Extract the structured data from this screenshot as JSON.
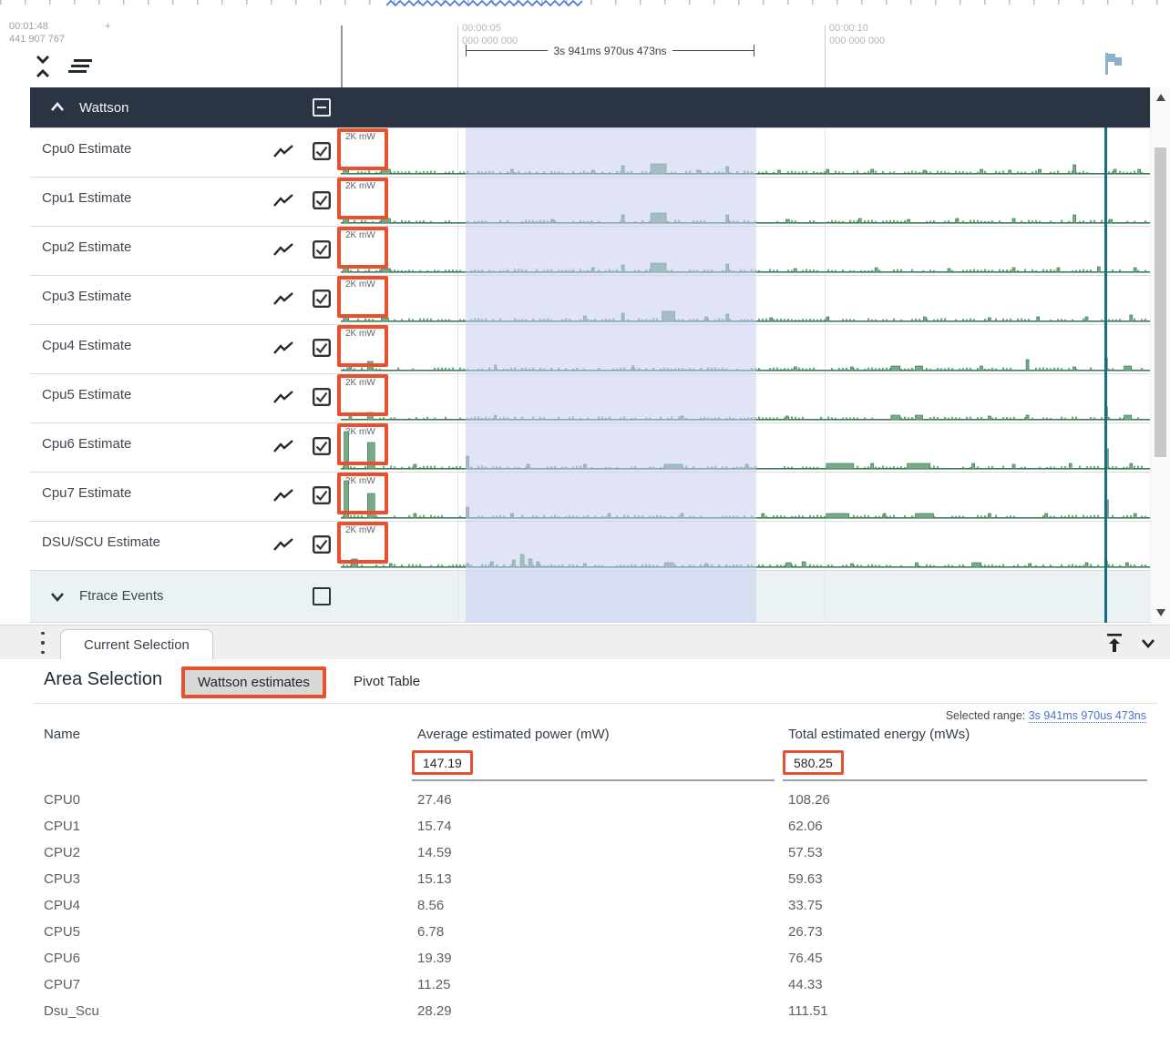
{
  "ruler": {
    "left_time": "00:01:48",
    "left_plus": "+",
    "left_time2": "441 907 767",
    "markers": [
      {
        "time": "00:00:05",
        "sub": "000 000 000"
      },
      {
        "time": "00:00:10",
        "sub": "000 000 000"
      }
    ],
    "range_label": "3s 941ms 970us 473ns"
  },
  "track_area": {
    "group_name": "Wattson",
    "unit_label": "2K mW",
    "ftrace_group_name": "Ftrace Events",
    "tracks": [
      {
        "name": "Cpu0 Estimate",
        "spikes": [
          [
            0.003,
            5,
            6
          ],
          [
            0.05,
            4,
            10
          ],
          [
            0.21,
            4,
            3
          ],
          [
            0.31,
            3,
            3
          ],
          [
            0.347,
            8,
            3
          ],
          [
            0.383,
            10,
            17
          ],
          [
            0.44,
            3,
            4
          ],
          [
            0.476,
            7,
            3
          ],
          [
            0.54,
            3,
            3
          ],
          [
            0.6,
            4,
            3
          ],
          [
            0.655,
            4,
            3
          ],
          [
            0.72,
            3,
            3
          ],
          [
            0.79,
            4,
            3
          ],
          [
            0.825,
            3,
            3
          ],
          [
            0.862,
            4,
            3
          ],
          [
            0.905,
            9,
            3
          ],
          [
            0.955,
            4,
            3
          ],
          [
            0.985,
            4,
            3
          ]
        ]
      },
      {
        "name": "Cpu1 Estimate",
        "spikes": [
          [
            0.003,
            4,
            6
          ],
          [
            0.05,
            4,
            10
          ],
          [
            0.26,
            3,
            3
          ],
          [
            0.347,
            8,
            3
          ],
          [
            0.383,
            10,
            17
          ],
          [
            0.476,
            8,
            3
          ],
          [
            0.55,
            3,
            4
          ],
          [
            0.64,
            4,
            3
          ],
          [
            0.7,
            3,
            3
          ],
          [
            0.76,
            4,
            3
          ],
          [
            0.83,
            4,
            3
          ],
          [
            0.905,
            8,
            3
          ],
          [
            0.95,
            3,
            3
          ]
        ]
      },
      {
        "name": "Cpu2 Estimate",
        "spikes": [
          [
            0.003,
            4,
            6
          ],
          [
            0.05,
            3,
            10
          ],
          [
            0.31,
            4,
            3
          ],
          [
            0.347,
            7,
            3
          ],
          [
            0.383,
            9,
            17
          ],
          [
            0.476,
            8,
            3
          ],
          [
            0.56,
            3,
            3
          ],
          [
            0.66,
            4,
            3
          ],
          [
            0.75,
            3,
            3
          ],
          [
            0.83,
            4,
            3
          ],
          [
            0.885,
            4,
            3
          ],
          [
            0.935,
            5,
            3
          ],
          [
            0.98,
            4,
            3
          ]
        ]
      },
      {
        "name": "Cpu3 Estimate",
        "spikes": [
          [
            0.003,
            4,
            6
          ],
          [
            0.05,
            3,
            8
          ],
          [
            0.3,
            5,
            3
          ],
          [
            0.347,
            8,
            3
          ],
          [
            0.397,
            10,
            14
          ],
          [
            0.45,
            4,
            3
          ],
          [
            0.476,
            7,
            3
          ],
          [
            0.53,
            3,
            3
          ],
          [
            0.6,
            4,
            3
          ],
          [
            0.72,
            4,
            3
          ],
          [
            0.8,
            3,
            3
          ],
          [
            0.86,
            4,
            3
          ],
          [
            0.92,
            4,
            3
          ],
          [
            0.975,
            6,
            3
          ]
        ]
      },
      {
        "name": "Cpu4 Estimate",
        "spikes": [
          [
            0.01,
            5,
            3
          ],
          [
            0.033,
            9,
            6
          ],
          [
            0.19,
            5,
            2
          ],
          [
            0.36,
            4,
            2
          ],
          [
            0.56,
            3,
            3
          ],
          [
            0.63,
            3,
            3
          ],
          [
            0.68,
            4,
            10
          ],
          [
            0.71,
            4,
            8
          ],
          [
            0.79,
            4,
            3
          ],
          [
            0.847,
            11,
            3
          ],
          [
            0.905,
            3,
            3
          ],
          [
            0.944,
            13,
            3
          ],
          [
            0.968,
            4,
            8
          ]
        ]
      },
      {
        "name": "Cpu5 Estimate",
        "spikes": [
          [
            0.01,
            4,
            3
          ],
          [
            0.033,
            7,
            6
          ],
          [
            0.19,
            4,
            2
          ],
          [
            0.42,
            3,
            3
          ],
          [
            0.55,
            3,
            3
          ],
          [
            0.68,
            4,
            10
          ],
          [
            0.71,
            4,
            8
          ],
          [
            0.8,
            3,
            3
          ],
          [
            0.847,
            4,
            3
          ],
          [
            0.944,
            13,
            3
          ],
          [
            0.968,
            4,
            8
          ]
        ]
      },
      {
        "name": "Cpu6 Estimate",
        "spikes": [
          [
            0.004,
            40,
            5
          ],
          [
            0.033,
            28,
            8
          ],
          [
            0.09,
            4,
            3
          ],
          [
            0.155,
            13,
            3
          ],
          [
            0.23,
            4,
            3
          ],
          [
            0.3,
            4,
            3
          ],
          [
            0.4,
            4,
            20
          ],
          [
            0.5,
            4,
            3
          ],
          [
            0.6,
            5,
            30
          ],
          [
            0.655,
            5,
            3
          ],
          [
            0.7,
            5,
            25
          ],
          [
            0.78,
            5,
            3
          ],
          [
            0.83,
            4,
            3
          ],
          [
            0.9,
            5,
            3
          ],
          [
            0.944,
            21,
            4
          ],
          [
            0.975,
            5,
            3
          ]
        ]
      },
      {
        "name": "Cpu7 Estimate",
        "spikes": [
          [
            0.004,
            40,
            5
          ],
          [
            0.033,
            26,
            8
          ],
          [
            0.09,
            4,
            3
          ],
          [
            0.155,
            11,
            3
          ],
          [
            0.21,
            4,
            3
          ],
          [
            0.33,
            4,
            3
          ],
          [
            0.42,
            4,
            3
          ],
          [
            0.52,
            4,
            3
          ],
          [
            0.6,
            4,
            25
          ],
          [
            0.67,
            4,
            3
          ],
          [
            0.71,
            4,
            20
          ],
          [
            0.8,
            4,
            3
          ],
          [
            0.87,
            4,
            3
          ],
          [
            0.944,
            19,
            4
          ],
          [
            0.98,
            4,
            3
          ]
        ]
      },
      {
        "name": "DSU/SCU Estimate",
        "spikes": [
          [
            0.013,
            8,
            7
          ],
          [
            0.06,
            3,
            3
          ],
          [
            0.155,
            3,
            3
          ],
          [
            0.185,
            5,
            3
          ],
          [
            0.212,
            7,
            3
          ],
          [
            0.222,
            13,
            4
          ],
          [
            0.232,
            8,
            4
          ],
          [
            0.242,
            5,
            3
          ],
          [
            0.3,
            3,
            3
          ],
          [
            0.4,
            4,
            10
          ],
          [
            0.45,
            3,
            3
          ],
          [
            0.55,
            4,
            6
          ],
          [
            0.57,
            5,
            4
          ],
          [
            0.63,
            3,
            3
          ],
          [
            0.71,
            4,
            3
          ],
          [
            0.78,
            4,
            10
          ],
          [
            0.85,
            3,
            3
          ],
          [
            0.92,
            4,
            3
          ],
          [
            0.944,
            6,
            3
          ],
          [
            0.97,
            4,
            3
          ]
        ]
      }
    ]
  },
  "bottom_panel": {
    "tab_label": "Current Selection",
    "heading": "Area Selection",
    "tabs": [
      {
        "label": "Wattson estimates",
        "active": true
      },
      {
        "label": "Pivot Table",
        "active": false
      }
    ],
    "selected_range_label": "Selected range:",
    "selected_range_value": "3s 941ms 970us 473ns",
    "table": {
      "columns": [
        "Name",
        "Average estimated power (mW)",
        "Total estimated energy (mWs)"
      ],
      "totals": {
        "power": "147.19",
        "energy": "580.25"
      },
      "rows": [
        {
          "name": "CPU0",
          "power": "27.46",
          "energy": "108.26"
        },
        {
          "name": "CPU1",
          "power": "15.74",
          "energy": "62.06"
        },
        {
          "name": "CPU2",
          "power": "14.59",
          "energy": "57.53"
        },
        {
          "name": "CPU3",
          "power": "15.13",
          "energy": "59.63"
        },
        {
          "name": "CPU4",
          "power": "8.56",
          "energy": "33.75"
        },
        {
          "name": "CPU5",
          "power": "6.78",
          "energy": "26.73"
        },
        {
          "name": "CPU6",
          "power": "19.39",
          "energy": "76.45"
        },
        {
          "name": "CPU7",
          "power": "11.25",
          "energy": "44.33"
        },
        {
          "name": "Dsu_Scu",
          "power": "28.29",
          "energy": "111.51"
        }
      ]
    }
  },
  "colors": {
    "highlight_orange": "#e8512d",
    "selection_lavender": "#c7cdee",
    "waveform_fill": "#79aa88",
    "waveform_line": "#3d7c56",
    "marker_teal": "#15707f",
    "group_header_bg": "#2b3442",
    "link_blue": "#4a73c9",
    "flag_blue": "#8ab3c8"
  }
}
